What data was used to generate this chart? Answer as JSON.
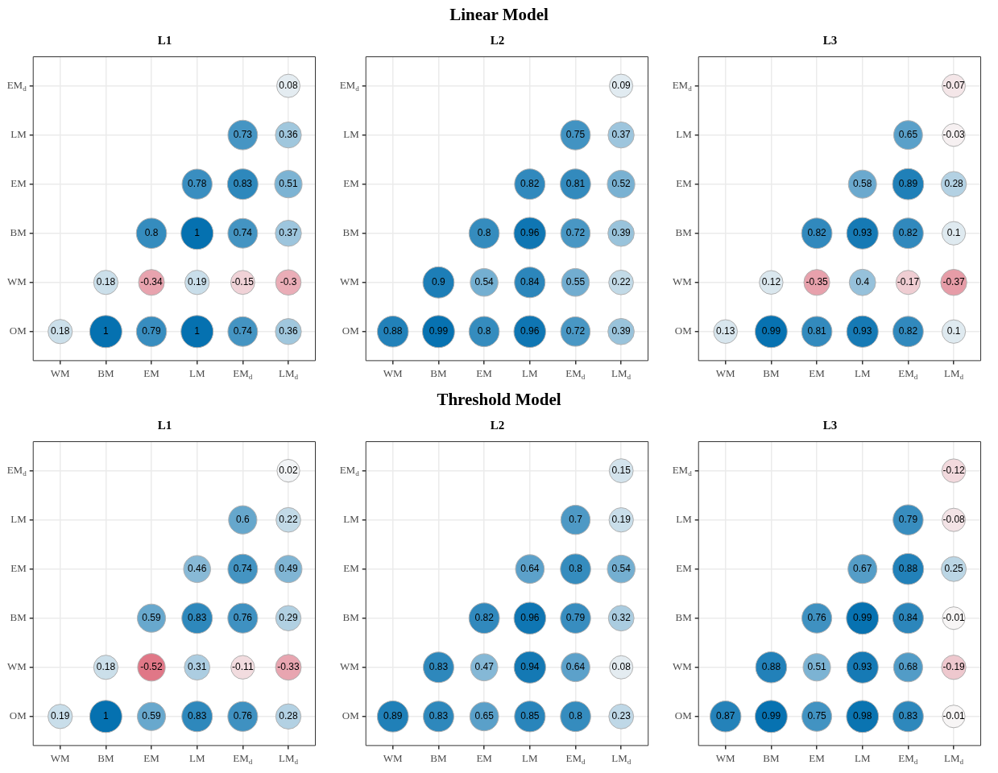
{
  "chart_data": [
    {
      "type": "heatmap",
      "title": "L1",
      "annotations": [
        "Linear Model"
      ],
      "grid": true,
      "data_labels": true,
      "categories": [
        "WM",
        "BM",
        "EM",
        "LM",
        "EM$_{d}$",
        "LM$_{d}$"
      ],
      "y_categories": [
        "EM$_{d}$",
        "LM",
        "EM",
        "BM",
        "WM",
        "OM"
      ],
      "cells": [
        [
          null,
          null,
          null,
          null,
          null,
          0.08
        ],
        [
          null,
          null,
          null,
          null,
          0.73,
          0.36
        ],
        [
          null,
          null,
          null,
          0.78,
          0.83,
          0.51
        ],
        [
          null,
          null,
          0.8,
          1,
          0.74,
          0.37
        ],
        [
          null,
          0.18,
          -0.34,
          0.19,
          -0.15,
          -0.3
        ],
        [
          0.18,
          1,
          0.79,
          1,
          0.74,
          0.36
        ]
      ]
    },
    {
      "type": "heatmap",
      "title": "L2",
      "grid": true,
      "data_labels": true,
      "categories": [
        "WM",
        "BM",
        "EM",
        "LM",
        "EM$_{d}$",
        "LM$_{d}$"
      ],
      "y_categories": [
        "EM$_{d}$",
        "LM",
        "EM",
        "BM",
        "WM",
        "OM"
      ],
      "cells": [
        [
          null,
          null,
          null,
          null,
          null,
          0.09
        ],
        [
          null,
          null,
          null,
          null,
          0.75,
          0.37
        ],
        [
          null,
          null,
          null,
          0.82,
          0.81,
          0.52
        ],
        [
          null,
          null,
          0.8,
          0.96,
          0.72,
          0.39
        ],
        [
          null,
          0.9,
          0.54,
          0.84,
          0.55,
          0.22
        ],
        [
          0.88,
          0.99,
          0.8,
          0.96,
          0.72,
          0.39
        ]
      ]
    },
    {
      "type": "heatmap",
      "title": "L3",
      "grid": true,
      "data_labels": true,
      "categories": [
        "WM",
        "BM",
        "EM",
        "LM",
        "EM$_{d}$",
        "LM$_{d}$"
      ],
      "y_categories": [
        "EM$_{d}$",
        "LM",
        "EM",
        "BM",
        "WM",
        "OM"
      ],
      "cells": [
        [
          null,
          null,
          null,
          null,
          null,
          -0.07
        ],
        [
          null,
          null,
          null,
          null,
          0.65,
          -0.03
        ],
        [
          null,
          null,
          null,
          0.58,
          0.89,
          0.28
        ],
        [
          null,
          null,
          0.82,
          0.93,
          0.82,
          0.1
        ],
        [
          null,
          0.12,
          -0.35,
          0.4,
          -0.17,
          -0.37
        ],
        [
          0.13,
          0.99,
          0.81,
          0.93,
          0.82,
          0.1
        ]
      ]
    },
    {
      "type": "heatmap",
      "title": "L1",
      "annotations": [
        "Threshold Model"
      ],
      "grid": true,
      "data_labels": true,
      "categories": [
        "WM",
        "BM",
        "EM",
        "LM",
        "EM$_{d}$",
        "LM$_{d}$"
      ],
      "y_categories": [
        "EM$_{d}$",
        "LM",
        "EM",
        "BM",
        "WM",
        "OM"
      ],
      "cells": [
        [
          null,
          null,
          null,
          null,
          null,
          0.02
        ],
        [
          null,
          null,
          null,
          null,
          0.6,
          0.22
        ],
        [
          null,
          null,
          null,
          0.46,
          0.74,
          0.49
        ],
        [
          null,
          null,
          0.59,
          0.83,
          0.76,
          0.29
        ],
        [
          null,
          0.18,
          -0.52,
          0.31,
          -0.11,
          -0.33
        ],
        [
          0.19,
          1,
          0.59,
          0.83,
          0.76,
          0.28
        ]
      ]
    },
    {
      "type": "heatmap",
      "title": "L2",
      "grid": true,
      "data_labels": true,
      "categories": [
        "WM",
        "BM",
        "EM",
        "LM",
        "EM$_{d}$",
        "LM$_{d}$"
      ],
      "y_categories": [
        "EM$_{d}$",
        "LM",
        "EM",
        "BM",
        "WM",
        "OM"
      ],
      "cells": [
        [
          null,
          null,
          null,
          null,
          null,
          0.15
        ],
        [
          null,
          null,
          null,
          null,
          0.7,
          0.19
        ],
        [
          null,
          null,
          null,
          0.64,
          0.8,
          0.54
        ],
        [
          null,
          null,
          0.82,
          0.96,
          0.79,
          0.32
        ],
        [
          null,
          0.83,
          0.47,
          0.94,
          0.64,
          0.08
        ],
        [
          0.89,
          0.83,
          0.65,
          0.85,
          0.8,
          0.23
        ]
      ]
    },
    {
      "type": "heatmap",
      "title": "L3",
      "grid": true,
      "data_labels": true,
      "categories": [
        "WM",
        "BM",
        "EM",
        "LM",
        "EM$_{d}$",
        "LM$_{d}$"
      ],
      "y_categories": [
        "EM$_{d}$",
        "LM",
        "EM",
        "BM",
        "WM",
        "OM"
      ],
      "cells": [
        [
          null,
          null,
          null,
          null,
          null,
          -0.12
        ],
        [
          null,
          null,
          null,
          null,
          0.79,
          -0.08
        ],
        [
          null,
          null,
          null,
          0.67,
          0.88,
          0.25
        ],
        [
          null,
          null,
          0.76,
          0.99,
          0.84,
          -0.01
        ],
        [
          null,
          0.88,
          0.51,
          0.93,
          0.68,
          -0.19
        ],
        [
          0.87,
          0.99,
          0.75,
          0.98,
          0.83,
          -0.01
        ]
      ]
    }
  ]
}
